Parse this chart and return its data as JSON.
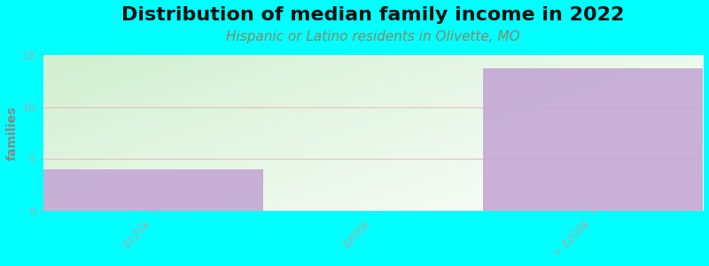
{
  "title": "Distribution of median family income in 2022",
  "subtitle": "Hispanic or Latino residents in Olivette, MO",
  "categories": [
    "$125k",
    "$200k",
    "> $200k"
  ],
  "values": [
    4,
    0,
    13.7
  ],
  "bar_color": "#c4a8d4",
  "background_color": "#00FFFF",
  "gradient_left_top": "#d8edd8",
  "gradient_right": "#f0f8f0",
  "gradient_top": "#eaf5f0",
  "ylabel": "families",
  "ylim": [
    0,
    15
  ],
  "yticks": [
    0,
    5,
    10,
    15
  ],
  "grid_color": "#e8c0c0",
  "title_fontsize": 16,
  "subtitle_fontsize": 11,
  "subtitle_color": "#888866",
  "tick_label_color": "#aaaaaa",
  "ylabel_color": "#888888",
  "tick_fontsize": 9
}
